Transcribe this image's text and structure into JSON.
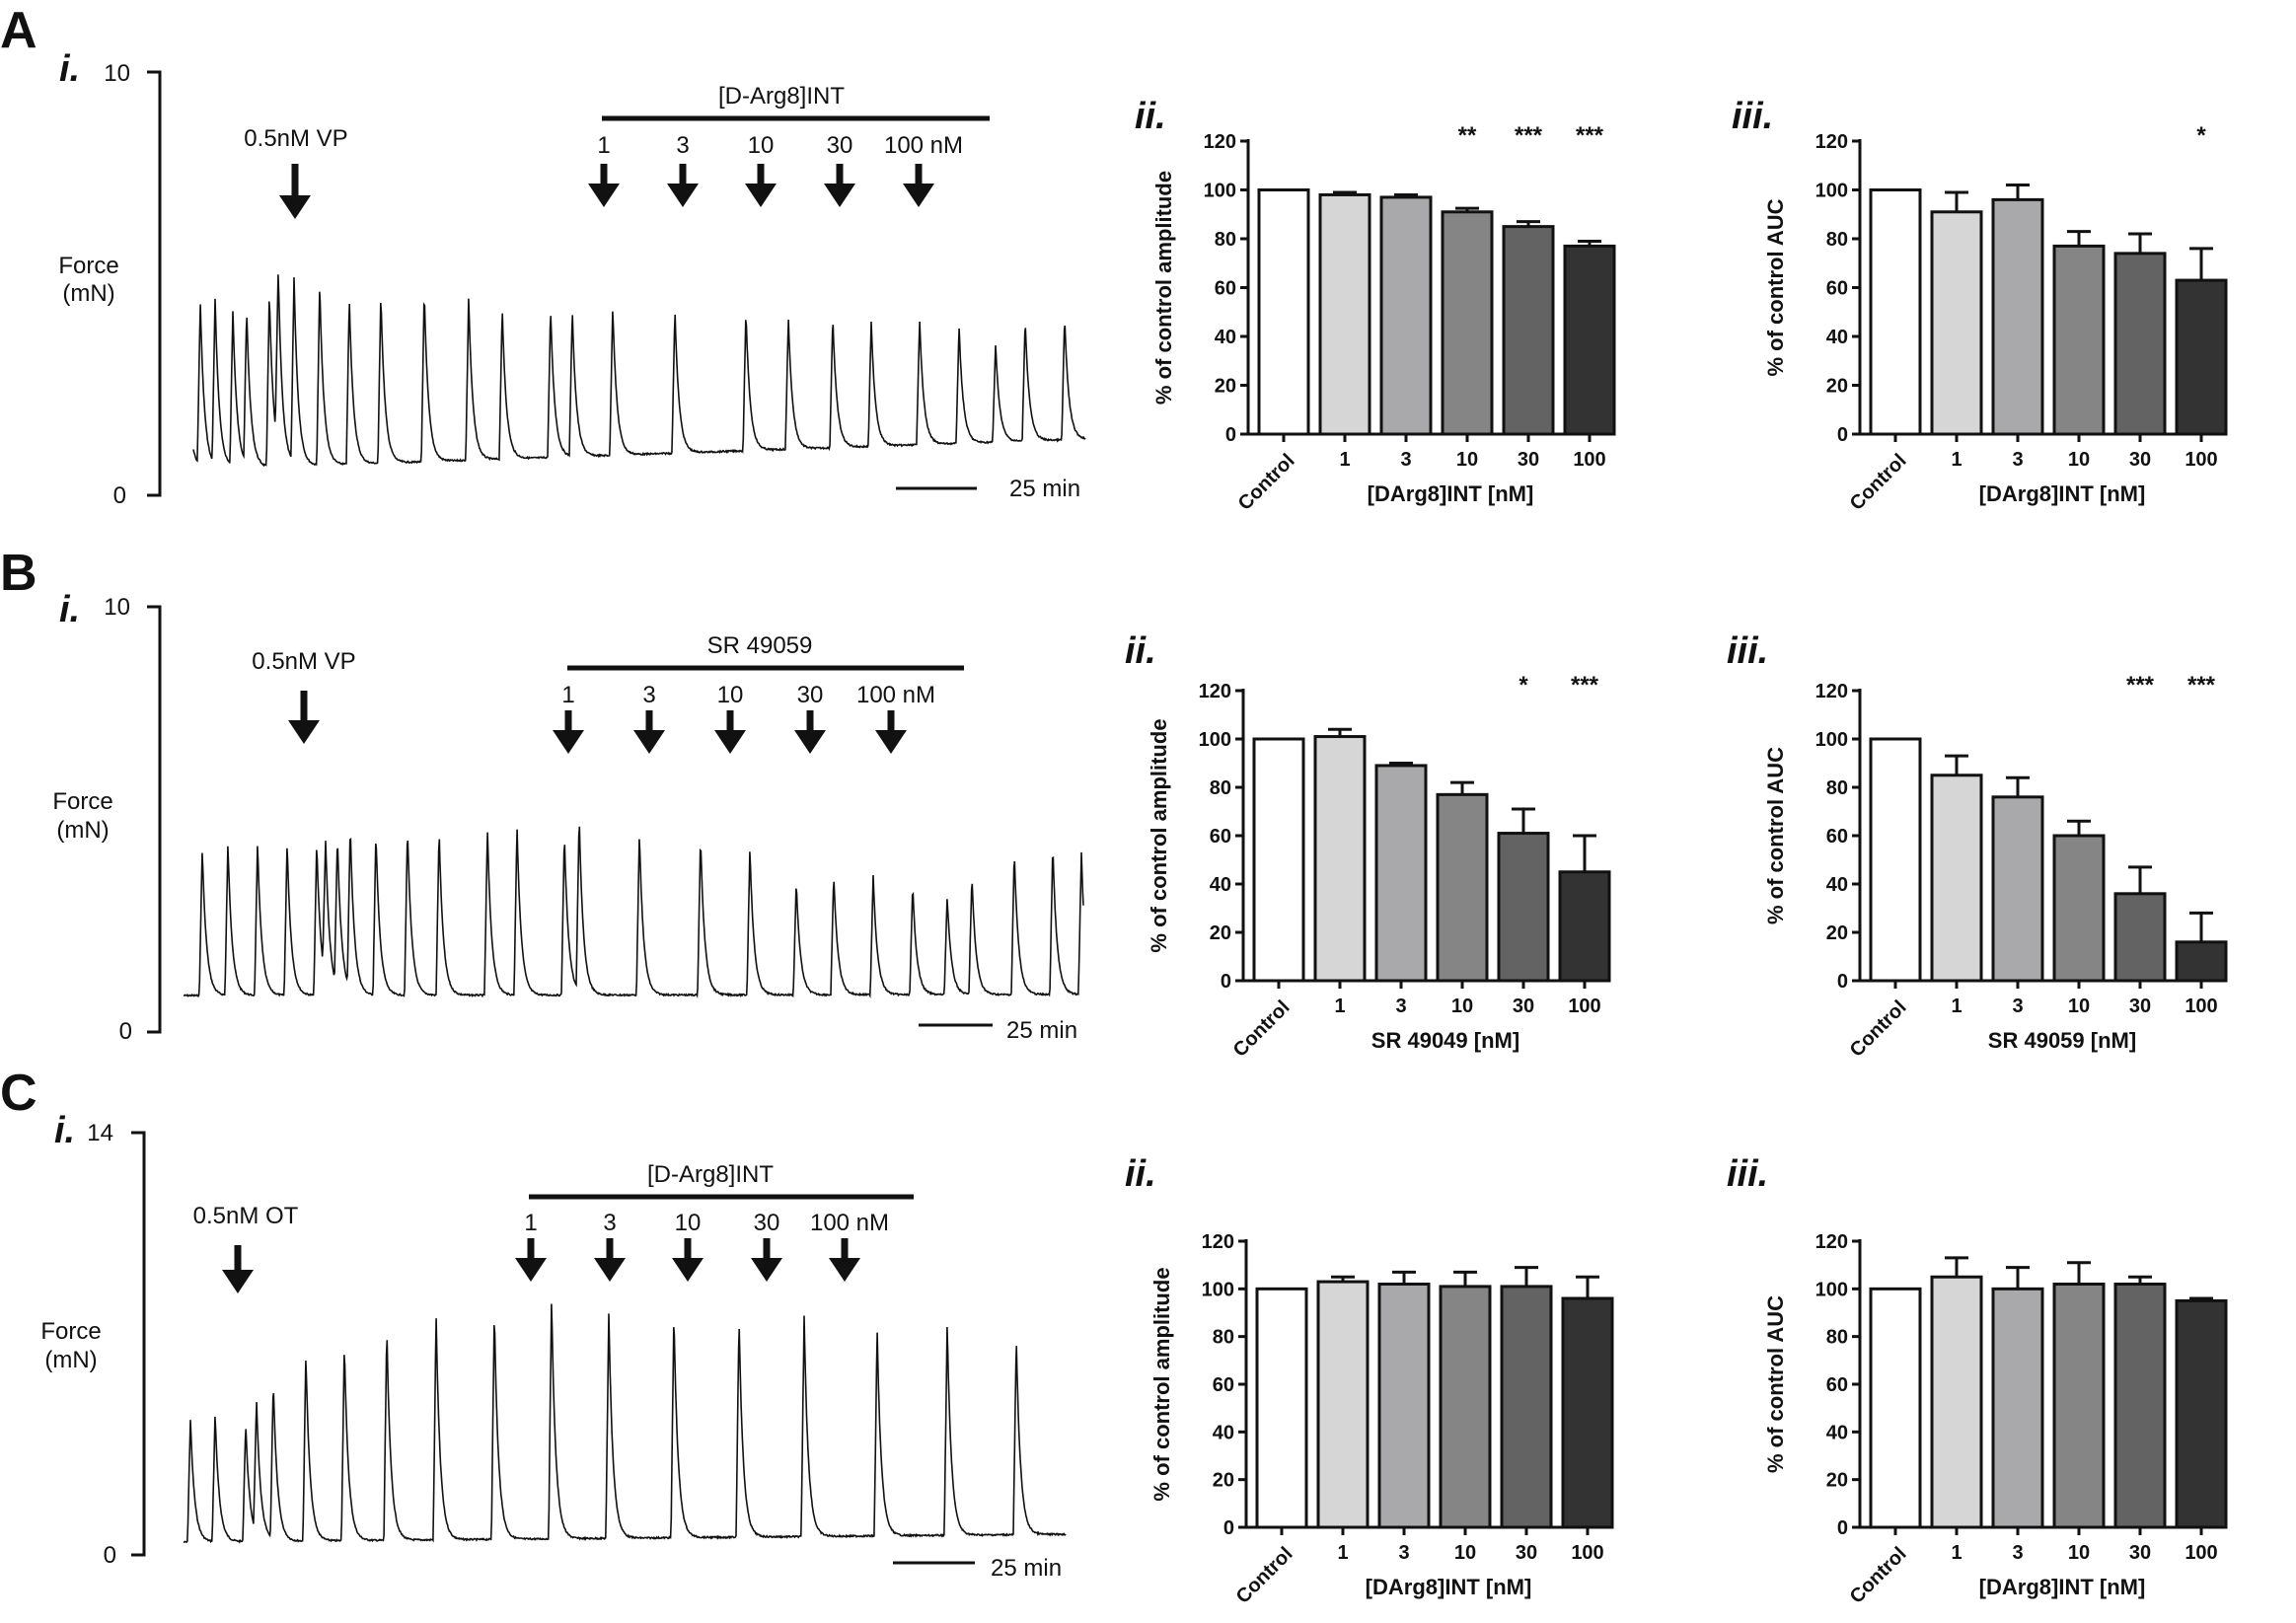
{
  "panels": [
    {
      "letter": "A",
      "trace": {
        "sub": "i.",
        "y_top": "10",
        "y_bottom": "0",
        "ylabel_1": "Force",
        "ylabel_2": "(mN)",
        "agonist": "0.5nM VP",
        "drug": "[D-Arg8]INT",
        "doses": [
          "1",
          "3",
          "10",
          "30",
          "100 nM"
        ],
        "scale_bar": "25 min"
      },
      "amp": {
        "sub": "ii.",
        "ylabel": "% of control amplitude",
        "xlabel": "[DArg8]INT [nM]",
        "categories": [
          "Control",
          "1",
          "3",
          "10",
          "30",
          "100"
        ],
        "values": [
          100,
          98,
          97,
          91,
          85,
          77
        ],
        "errors": [
          0,
          1,
          1,
          1.5,
          2,
          2
        ],
        "sig": [
          "",
          "",
          "",
          "**",
          "***",
          "***"
        ],
        "yticks": [
          "0",
          "20",
          "40",
          "60",
          "80",
          "100",
          "120"
        ]
      },
      "auc": {
        "sub": "iii.",
        "ylabel": "% of control AUC",
        "xlabel": "[DArg8]INT [nM]",
        "categories": [
          "Control",
          "1",
          "3",
          "10",
          "30",
          "100"
        ],
        "values": [
          100,
          91,
          96,
          77,
          74,
          63
        ],
        "errors": [
          0,
          8,
          6,
          6,
          8,
          13
        ],
        "sig": [
          "",
          "",
          "",
          "",
          "",
          "*"
        ],
        "yticks": [
          "0",
          "20",
          "40",
          "60",
          "80",
          "100",
          "120"
        ]
      }
    },
    {
      "letter": "B",
      "trace": {
        "sub": "i.",
        "y_top": "10",
        "y_bottom": "0",
        "ylabel_1": "Force",
        "ylabel_2": "(mN)",
        "agonist": "0.5nM VP",
        "drug": "SR 49059",
        "doses": [
          "1",
          "3",
          "10",
          "30",
          "100 nM"
        ],
        "scale_bar": "25 min"
      },
      "amp": {
        "sub": "ii.",
        "ylabel": "% of control amplitude",
        "xlabel": "SR 49049 [nM]",
        "categories": [
          "Control",
          "1",
          "3",
          "10",
          "30",
          "100"
        ],
        "values": [
          100,
          101,
          89,
          77,
          61,
          45
        ],
        "errors": [
          0,
          3,
          1,
          5,
          10,
          15
        ],
        "sig": [
          "",
          "",
          "",
          "",
          "*",
          "***"
        ],
        "yticks": [
          "0",
          "20",
          "40",
          "60",
          "80",
          "100",
          "120"
        ]
      },
      "auc": {
        "sub": "iii.",
        "ylabel": "% of control AUC",
        "xlabel": "SR 49059 [nM]",
        "categories": [
          "Control",
          "1",
          "3",
          "10",
          "30",
          "100"
        ],
        "values": [
          100,
          85,
          76,
          60,
          36,
          16
        ],
        "errors": [
          0,
          8,
          8,
          6,
          11,
          12
        ],
        "sig": [
          "",
          "",
          "",
          "",
          "***",
          "***"
        ],
        "yticks": [
          "0",
          "20",
          "40",
          "60",
          "80",
          "100",
          "120"
        ]
      }
    },
    {
      "letter": "C",
      "trace": {
        "sub": "i.",
        "y_top": "14",
        "y_bottom": "0",
        "ylabel_1": "Force",
        "ylabel_2": "(mN)",
        "agonist": "0.5nM OT",
        "drug": "[D-Arg8]INT",
        "doses": [
          "1",
          "3",
          "10",
          "30",
          "100 nM"
        ],
        "scale_bar": "25 min"
      },
      "amp": {
        "sub": "ii.",
        "ylabel": "% of control amplitude",
        "xlabel": "[DArg8]INT [nM]",
        "categories": [
          "Control",
          "1",
          "3",
          "10",
          "30",
          "100"
        ],
        "values": [
          100,
          103,
          102,
          101,
          101,
          96
        ],
        "errors": [
          0,
          2,
          5,
          6,
          8,
          9
        ],
        "sig": [
          "",
          "",
          "",
          "",
          "",
          ""
        ],
        "yticks": [
          "0",
          "20",
          "40",
          "60",
          "80",
          "100",
          "120"
        ]
      },
      "auc": {
        "sub": "iii.",
        "ylabel": "% of control AUC",
        "xlabel": "[DArg8]INT [nM]",
        "categories": [
          "Control",
          "1",
          "3",
          "10",
          "30",
          "100"
        ],
        "values": [
          100,
          105,
          100,
          102,
          102,
          95
        ],
        "errors": [
          0,
          8,
          9,
          9,
          3,
          1
        ],
        "sig": [
          "",
          "",
          "",
          "",
          "",
          ""
        ],
        "yticks": [
          "0",
          "20",
          "40",
          "60",
          "80",
          "100",
          "120"
        ]
      }
    }
  ],
  "bar_colors": [
    "#ffffff",
    "#d6d6d6",
    "#a9a9ab",
    "#858585",
    "#636363",
    "#333333"
  ],
  "chart_data": [
    {
      "type": "bar",
      "title": "A ii.",
      "ylabel": "% of control amplitude",
      "xlabel": "[DArg8]INT [nM]",
      "categories": [
        "Control",
        "1",
        "3",
        "10",
        "30",
        "100"
      ],
      "values": [
        100,
        98,
        97,
        91,
        85,
        77
      ],
      "ylim": [
        0,
        120
      ]
    },
    {
      "type": "bar",
      "title": "A iii.",
      "ylabel": "% of control AUC",
      "xlabel": "[DArg8]INT [nM]",
      "categories": [
        "Control",
        "1",
        "3",
        "10",
        "30",
        "100"
      ],
      "values": [
        100,
        91,
        96,
        77,
        74,
        63
      ],
      "ylim": [
        0,
        120
      ]
    },
    {
      "type": "bar",
      "title": "B ii.",
      "ylabel": "% of control amplitude",
      "xlabel": "SR 49049 [nM]",
      "categories": [
        "Control",
        "1",
        "3",
        "10",
        "30",
        "100"
      ],
      "values": [
        100,
        101,
        89,
        77,
        61,
        45
      ],
      "ylim": [
        0,
        120
      ]
    },
    {
      "type": "bar",
      "title": "B iii.",
      "ylabel": "% of control AUC",
      "xlabel": "SR 49059 [nM]",
      "categories": [
        "Control",
        "1",
        "3",
        "10",
        "30",
        "100"
      ],
      "values": [
        100,
        85,
        76,
        60,
        36,
        16
      ],
      "ylim": [
        0,
        120
      ]
    },
    {
      "type": "bar",
      "title": "C ii.",
      "ylabel": "% of control amplitude",
      "xlabel": "[DArg8]INT [nM]",
      "categories": [
        "Control",
        "1",
        "3",
        "10",
        "30",
        "100"
      ],
      "values": [
        100,
        103,
        102,
        101,
        101,
        96
      ],
      "ylim": [
        0,
        120
      ]
    },
    {
      "type": "bar",
      "title": "C iii.",
      "ylabel": "% of control AUC",
      "xlabel": "[DArg8]INT [nM]",
      "categories": [
        "Control",
        "1",
        "3",
        "10",
        "30",
        "100"
      ],
      "values": [
        100,
        105,
        100,
        102,
        102,
        95
      ],
      "ylim": [
        0,
        120
      ]
    }
  ]
}
